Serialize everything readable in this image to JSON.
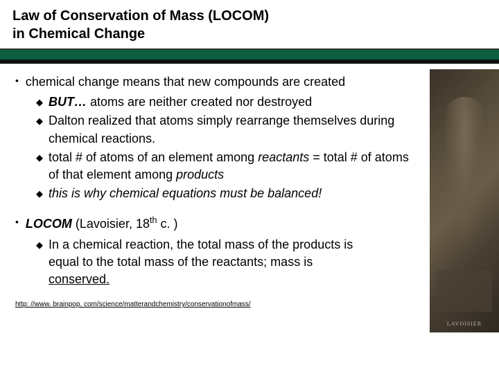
{
  "title_line1": "Law of Conservation of Mass (LOCOM)",
  "title_line2": "in Chemical Change",
  "section1": {
    "main": "chemical change means that new compounds are created",
    "items": [
      {
        "prefix_bold_italic": "BUT…",
        "rest": " atoms are neither created nor destroyed"
      },
      {
        "text": "Dalton realized that atoms simply rearrange themselves during chemical reactions."
      },
      {
        "html": "total # of atoms of an element among <span class='italic'>reactants</span> = total # of atoms of that element among <span class='italic'>products</span>"
      },
      {
        "italic_text": "this is why chemical equations must be balanced!"
      }
    ]
  },
  "section2": {
    "main_html": "<span class='bolditalic'>LOCOM</span> (Lavoisier, 18<span class='super'>th</span> c. )",
    "items": [
      {
        "html": "In a chemical reaction, the total mass of the products is equal to the total mass of the reactants; mass is <span class='underline'>conserved.</span>"
      }
    ]
  },
  "link": "http: //www. brainpop. com/science/matterandchemistry/conservationofmass/",
  "statue_caption": "LAVOISIER",
  "colors": {
    "green_bar": "#0d5f3f",
    "text": "#000000",
    "background": "#ffffff"
  }
}
